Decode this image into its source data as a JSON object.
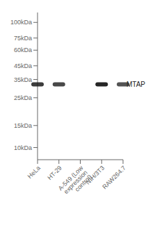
{
  "chart_data": {
    "type": "blot",
    "categories": [
      "HeLa",
      "HT-29",
      "A-549 (Low expression control)",
      "NIH/3T3",
      "RAW264.7"
    ],
    "values": [
      32,
      32,
      32,
      32,
      32
    ],
    "intensity": [
      0.85,
      0.8,
      0.0,
      0.95,
      0.75
    ],
    "log": "y",
    "ylim": [
      8,
      120
    ],
    "yticks": [
      {
        "value": 100,
        "label": "100kDa"
      },
      {
        "value": 75,
        "label": "75kDa"
      },
      {
        "value": 60,
        "label": "60kDa"
      },
      {
        "value": 45,
        "label": "45kDa"
      },
      {
        "value": 35,
        "label": "35kDa"
      },
      {
        "value": 25,
        "label": "25kDa"
      },
      {
        "value": 15,
        "label": "15kDa"
      },
      {
        "value": 10,
        "label": "10kDa"
      }
    ],
    "annotations": [
      {
        "text": "MTAP",
        "y": 32
      }
    ],
    "grid": false
  }
}
